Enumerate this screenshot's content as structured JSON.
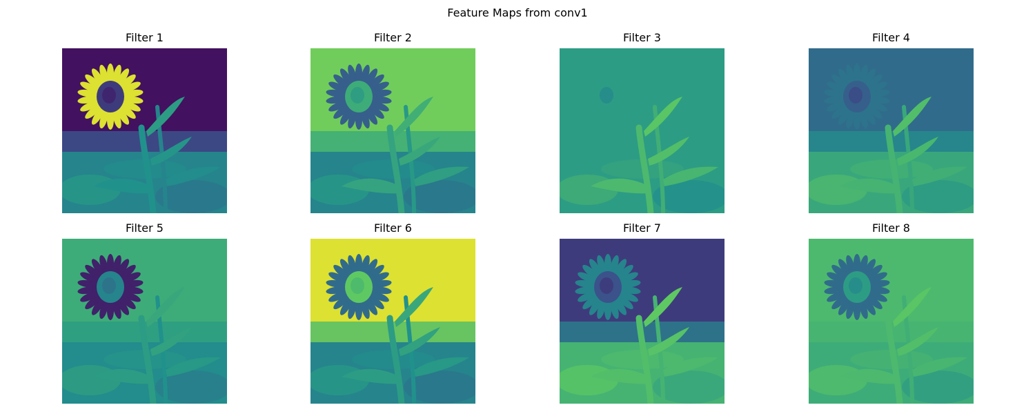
{
  "figure": {
    "title": "Feature Maps from conv1",
    "colormap": "viridis",
    "colors": {
      "viridis_stops": [
        "#440154",
        "#3b528b",
        "#21918c",
        "#5ec962",
        "#fde725"
      ]
    }
  },
  "panels": [
    {
      "title": "Filter 1",
      "background_level": 0.05,
      "flower_petal_level": 0.95,
      "flower_center_level": 0.18,
      "stem_level": 0.4,
      "ground_level": 0.45
    },
    {
      "title": "Filter 2",
      "background_level": 0.78,
      "flower_petal_level": 0.3,
      "flower_center_level": 0.62,
      "stem_level": 0.48,
      "ground_level": 0.45
    },
    {
      "title": "Filter 3",
      "background_level": 0.55,
      "flower_petal_level": 0.55,
      "flower_center_level": 0.55,
      "stem_level": 0.58,
      "ground_level": 0.55
    },
    {
      "title": "Filter 4",
      "background_level": 0.35,
      "flower_petal_level": 0.38,
      "flower_center_level": 0.3,
      "stem_level": 0.55,
      "ground_level": 0.6
    },
    {
      "title": "Filter 5",
      "background_level": 0.62,
      "flower_petal_level": 0.1,
      "flower_center_level": 0.45,
      "stem_level": 0.45,
      "ground_level": 0.48
    },
    {
      "title": "Filter 6",
      "background_level": 0.95,
      "flower_petal_level": 0.35,
      "flower_center_level": 0.75,
      "stem_level": 0.45,
      "ground_level": 0.45
    },
    {
      "title": "Filter 7",
      "background_level": 0.18,
      "flower_petal_level": 0.45,
      "flower_center_level": 0.25,
      "stem_level": 0.6,
      "ground_level": 0.65
    },
    {
      "title": "Filter 8",
      "background_level": 0.68,
      "flower_petal_level": 0.35,
      "flower_center_level": 0.55,
      "stem_level": 0.58,
      "ground_level": 0.62
    }
  ]
}
